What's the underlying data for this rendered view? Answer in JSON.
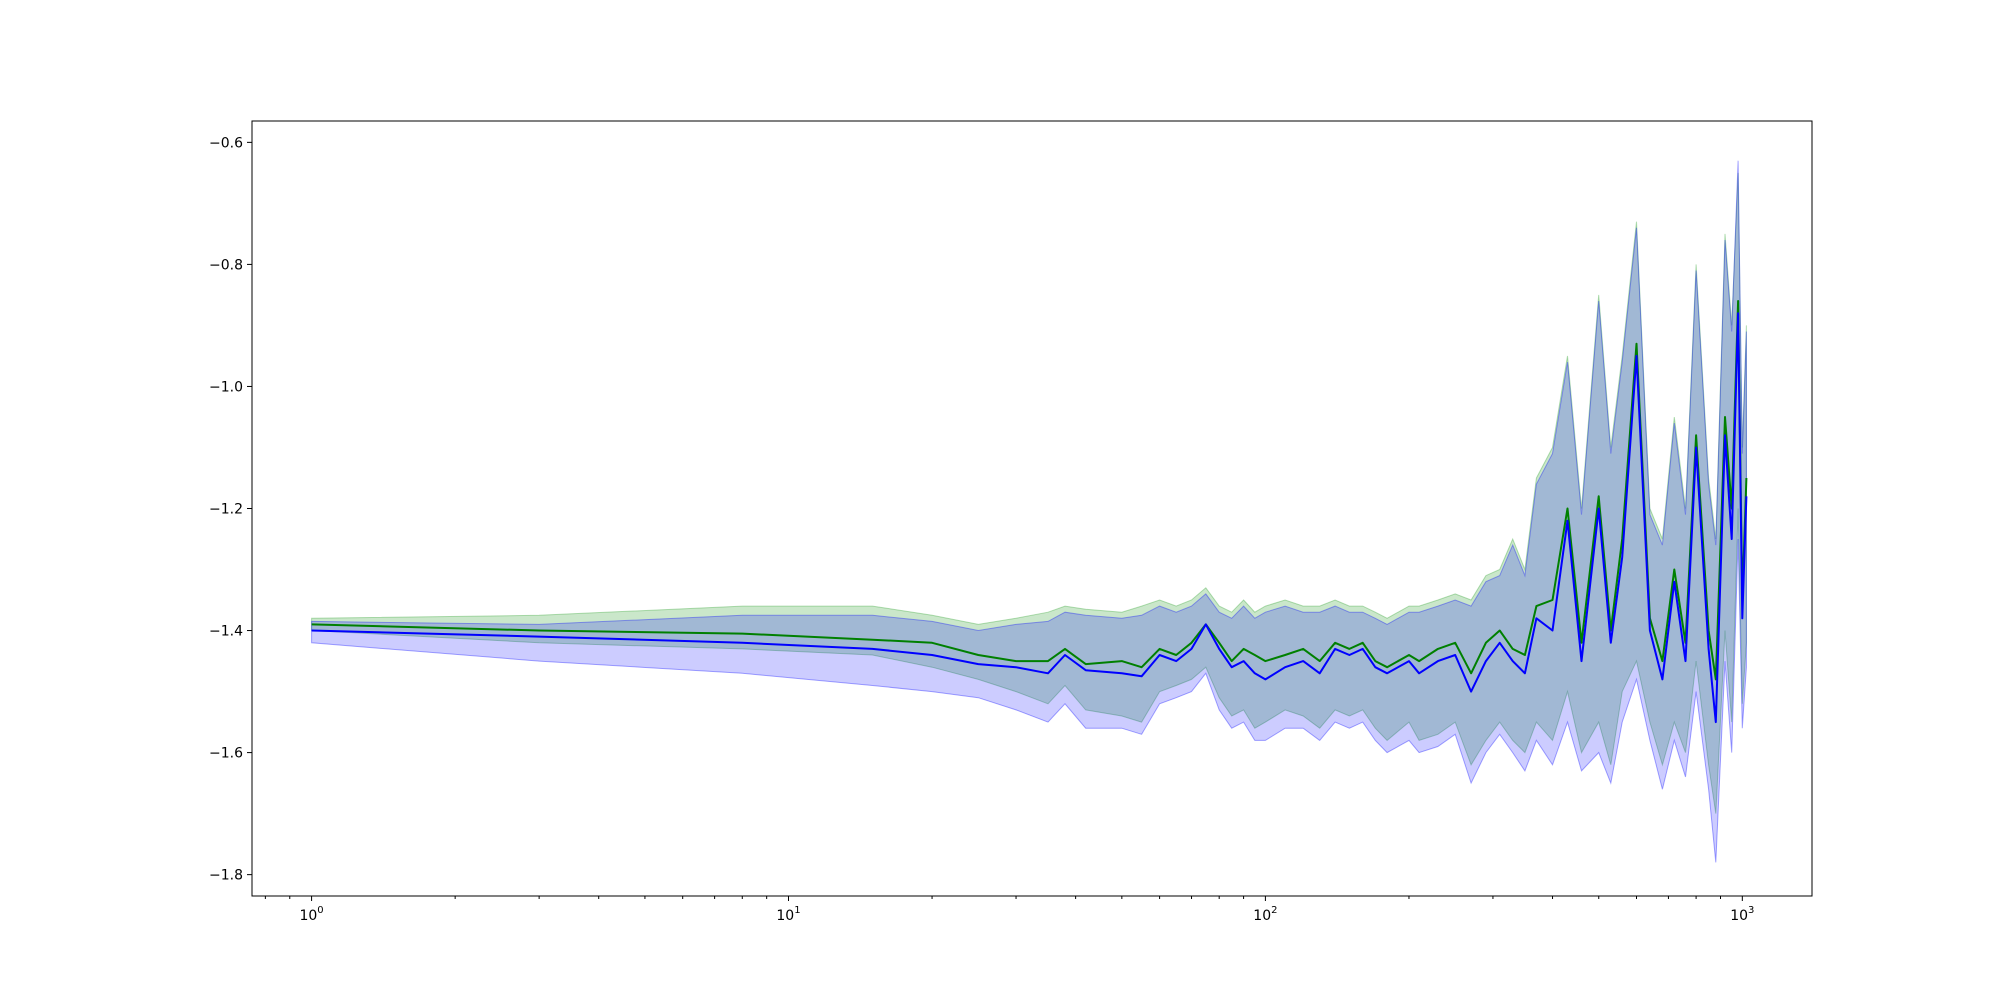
{
  "chart_data": {
    "type": "line",
    "title": "",
    "xlabel": "",
    "ylabel": "",
    "xscale": "log",
    "xlim": [
      0.75,
      1400
    ],
    "ylim": [
      -1.835,
      -0.565
    ],
    "grid": false,
    "legend": "none",
    "x_ticks": [
      {
        "base": "10",
        "exp": "0",
        "value": 1
      },
      {
        "base": "10",
        "exp": "1",
        "value": 10
      },
      {
        "base": "10",
        "exp": "2",
        "value": 100
      },
      {
        "base": "10",
        "exp": "3",
        "value": 1000
      }
    ],
    "y_ticks": [
      {
        "label": "−1.8",
        "value": -1.8
      },
      {
        "label": "−1.6",
        "value": -1.6
      },
      {
        "label": "−1.4",
        "value": -1.4
      },
      {
        "label": "−1.2",
        "value": -1.2
      },
      {
        "label": "−1.0",
        "value": -1.0
      },
      {
        "label": "−0.8",
        "value": -0.8
      },
      {
        "label": "−0.6",
        "value": -0.6
      }
    ],
    "series": [
      {
        "color": "#008000",
        "band_color": "#2ca02c",
        "band_opacity": 0.25,
        "x": [
          1,
          3,
          8,
          15,
          20,
          25,
          30,
          35,
          38,
          42,
          50,
          55,
          60,
          65,
          70,
          75,
          80,
          85,
          90,
          95,
          100,
          110,
          120,
          130,
          140,
          150,
          160,
          170,
          180,
          200,
          210,
          230,
          250,
          270,
          290,
          310,
          330,
          350,
          370,
          400,
          430,
          460,
          500,
          530,
          560,
          600,
          640,
          680,
          720,
          760,
          800,
          850,
          880,
          920,
          950,
          980,
          1000,
          1020
        ],
        "y": [
          -1.39,
          -1.4,
          -1.405,
          -1.415,
          -1.42,
          -1.44,
          -1.45,
          -1.45,
          -1.43,
          -1.455,
          -1.45,
          -1.46,
          -1.43,
          -1.44,
          -1.42,
          -1.39,
          -1.42,
          -1.45,
          -1.43,
          -1.44,
          -1.45,
          -1.44,
          -1.43,
          -1.45,
          -1.42,
          -1.43,
          -1.42,
          -1.45,
          -1.46,
          -1.44,
          -1.45,
          -1.43,
          -1.42,
          -1.47,
          -1.42,
          -1.4,
          -1.43,
          -1.44,
          -1.36,
          -1.35,
          -1.2,
          -1.42,
          -1.18,
          -1.4,
          -1.25,
          -0.93,
          -1.38,
          -1.45,
          -1.3,
          -1.42,
          -1.08,
          -1.4,
          -1.48,
          -1.05,
          -1.2,
          -0.86,
          -1.35,
          -1.15
        ],
        "lower": [
          -1.4,
          -1.42,
          -1.43,
          -1.44,
          -1.46,
          -1.48,
          -1.5,
          -1.52,
          -1.49,
          -1.53,
          -1.54,
          -1.55,
          -1.5,
          -1.49,
          -1.48,
          -1.46,
          -1.51,
          -1.54,
          -1.53,
          -1.56,
          -1.55,
          -1.53,
          -1.54,
          -1.56,
          -1.53,
          -1.54,
          -1.53,
          -1.56,
          -1.58,
          -1.55,
          -1.58,
          -1.57,
          -1.55,
          -1.62,
          -1.58,
          -1.55,
          -1.58,
          -1.6,
          -1.55,
          -1.58,
          -1.5,
          -1.6,
          -1.55,
          -1.62,
          -1.5,
          -1.45,
          -1.55,
          -1.62,
          -1.55,
          -1.6,
          -1.45,
          -1.62,
          -1.7,
          -1.4,
          -1.55,
          -1.2,
          -1.52,
          -1.42
        ],
        "upper": [
          -1.38,
          -1.375,
          -1.36,
          -1.36,
          -1.375,
          -1.39,
          -1.38,
          -1.37,
          -1.36,
          -1.365,
          -1.37,
          -1.36,
          -1.35,
          -1.36,
          -1.35,
          -1.33,
          -1.36,
          -1.37,
          -1.35,
          -1.37,
          -1.36,
          -1.35,
          -1.36,
          -1.36,
          -1.35,
          -1.36,
          -1.36,
          -1.37,
          -1.38,
          -1.36,
          -1.36,
          -1.35,
          -1.34,
          -1.35,
          -1.31,
          -1.3,
          -1.25,
          -1.3,
          -1.15,
          -1.1,
          -0.95,
          -1.2,
          -0.85,
          -1.1,
          -0.95,
          -0.73,
          -1.2,
          -1.25,
          -1.05,
          -1.2,
          -0.8,
          -1.15,
          -1.25,
          -0.75,
          -0.9,
          -0.65,
          -1.1,
          -0.9
        ]
      },
      {
        "color": "#0000ff",
        "band_color": "#0000ff",
        "band_opacity": 0.2,
        "x": [
          1,
          3,
          8,
          15,
          20,
          25,
          30,
          35,
          38,
          42,
          50,
          55,
          60,
          65,
          70,
          75,
          80,
          85,
          90,
          95,
          100,
          110,
          120,
          130,
          140,
          150,
          160,
          170,
          180,
          200,
          210,
          230,
          250,
          270,
          290,
          310,
          330,
          350,
          370,
          400,
          430,
          460,
          500,
          530,
          560,
          600,
          640,
          680,
          720,
          760,
          800,
          850,
          880,
          920,
          950,
          980,
          1000,
          1020
        ],
        "y": [
          -1.4,
          -1.41,
          -1.42,
          -1.43,
          -1.44,
          -1.455,
          -1.46,
          -1.47,
          -1.44,
          -1.465,
          -1.47,
          -1.475,
          -1.44,
          -1.45,
          -1.43,
          -1.39,
          -1.43,
          -1.46,
          -1.45,
          -1.47,
          -1.48,
          -1.46,
          -1.45,
          -1.47,
          -1.43,
          -1.44,
          -1.43,
          -1.46,
          -1.47,
          -1.45,
          -1.47,
          -1.45,
          -1.44,
          -1.5,
          -1.45,
          -1.42,
          -1.45,
          -1.47,
          -1.38,
          -1.4,
          -1.22,
          -1.45,
          -1.2,
          -1.42,
          -1.28,
          -0.95,
          -1.4,
          -1.48,
          -1.32,
          -1.45,
          -1.1,
          -1.43,
          -1.55,
          -1.08,
          -1.25,
          -0.88,
          -1.38,
          -1.18
        ],
        "lower": [
          -1.42,
          -1.45,
          -1.47,
          -1.49,
          -1.5,
          -1.51,
          -1.53,
          -1.55,
          -1.52,
          -1.56,
          -1.56,
          -1.57,
          -1.52,
          -1.51,
          -1.5,
          -1.47,
          -1.53,
          -1.56,
          -1.55,
          -1.58,
          -1.58,
          -1.56,
          -1.56,
          -1.58,
          -1.55,
          -1.56,
          -1.55,
          -1.58,
          -1.6,
          -1.58,
          -1.6,
          -1.59,
          -1.57,
          -1.65,
          -1.6,
          -1.57,
          -1.6,
          -1.63,
          -1.58,
          -1.62,
          -1.55,
          -1.63,
          -1.6,
          -1.65,
          -1.55,
          -1.48,
          -1.58,
          -1.66,
          -1.58,
          -1.64,
          -1.5,
          -1.66,
          -1.78,
          -1.45,
          -1.6,
          -1.25,
          -1.56,
          -1.46
        ],
        "upper": [
          -1.385,
          -1.39,
          -1.375,
          -1.375,
          -1.385,
          -1.4,
          -1.39,
          -1.385,
          -1.37,
          -1.375,
          -1.38,
          -1.375,
          -1.36,
          -1.37,
          -1.36,
          -1.34,
          -1.37,
          -1.38,
          -1.36,
          -1.38,
          -1.37,
          -1.36,
          -1.37,
          -1.37,
          -1.36,
          -1.37,
          -1.37,
          -1.38,
          -1.39,
          -1.37,
          -1.37,
          -1.36,
          -1.35,
          -1.36,
          -1.32,
          -1.31,
          -1.26,
          -1.31,
          -1.16,
          -1.11,
          -0.96,
          -1.21,
          -0.86,
          -1.11,
          -0.96,
          -0.74,
          -1.21,
          -1.26,
          -1.06,
          -1.21,
          -0.81,
          -1.16,
          -1.26,
          -0.76,
          -0.91,
          -0.63,
          -1.11,
          -0.91
        ]
      }
    ]
  }
}
